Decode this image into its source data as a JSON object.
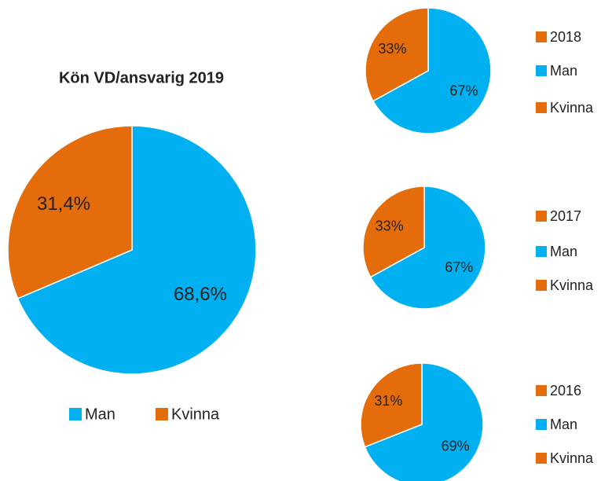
{
  "chart_data": [
    {
      "type": "pie",
      "title": "Kön VD/ansvarig 2019",
      "categories": [
        "Man",
        "Kvinna"
      ],
      "values": [
        68.6,
        31.4
      ],
      "value_labels": [
        "68,6%",
        "31,4%"
      ],
      "colors": [
        "#00b0f0",
        "#e46c0a"
      ]
    },
    {
      "type": "pie",
      "name": "2018",
      "categories": [
        "Man",
        "Kvinna"
      ],
      "values": [
        67,
        33
      ],
      "value_labels": [
        "67%",
        "33%"
      ],
      "colors": [
        "#00b0f0",
        "#e46c0a"
      ]
    },
    {
      "type": "pie",
      "name": "2017",
      "categories": [
        "Man",
        "Kvinna"
      ],
      "values": [
        67,
        33
      ],
      "value_labels": [
        "67%",
        "33%"
      ],
      "colors": [
        "#00b0f0",
        "#e46c0a"
      ]
    },
    {
      "type": "pie",
      "name": "2016",
      "categories": [
        "Man",
        "Kvinna"
      ],
      "values": [
        69,
        31
      ],
      "value_labels": [
        "69%",
        "31%"
      ],
      "colors": [
        "#00b0f0",
        "#e46c0a"
      ]
    }
  ]
}
